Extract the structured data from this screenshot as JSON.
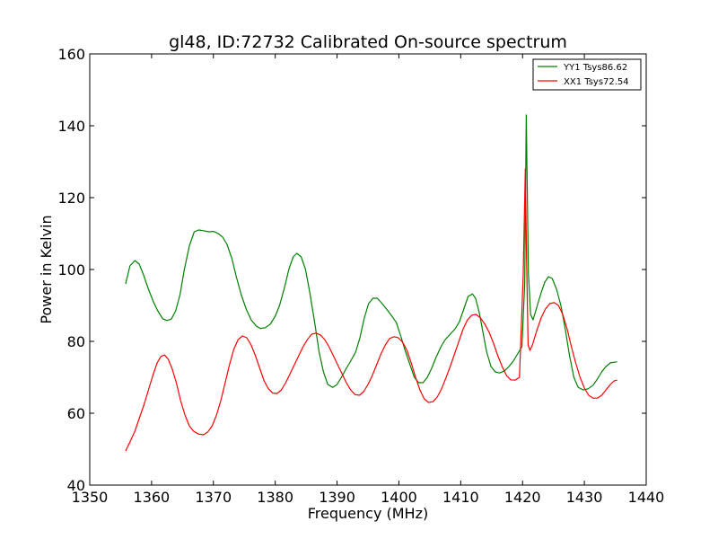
{
  "chart_data": {
    "type": "line",
    "title": "gl48, ID:72732 Calibrated On-source spectrum",
    "xlabel": "Frequency (MHz)",
    "ylabel": "Power in Kelvin",
    "xlim": [
      1350,
      1440
    ],
    "ylim": [
      40,
      160
    ],
    "xticks": [
      "1350",
      "1360",
      "1370",
      "1380",
      "1390",
      "1400",
      "1410",
      "1420",
      "1430",
      "1440"
    ],
    "yticks": [
      "40",
      "60",
      "80",
      "100",
      "120",
      "140",
      "160"
    ],
    "grid": false,
    "legend_position": "top-right",
    "series": [
      {
        "name": "YY1 Tsys86.62",
        "color": "#008000",
        "x": [
          1355.8,
          1356.5,
          1357.3,
          1358.0,
          1358.7,
          1359.5,
          1360.3,
          1361.0,
          1361.8,
          1362.5,
          1363.2,
          1363.9,
          1364.6,
          1365.3,
          1366.1,
          1366.9,
          1367.6,
          1368.4,
          1369.2,
          1370.0,
          1370.8,
          1371.5,
          1372.2,
          1373.0,
          1373.7,
          1374.5,
          1375.3,
          1376.1,
          1376.9,
          1377.6,
          1378.4,
          1379.2,
          1380.0,
          1380.7,
          1381.5,
          1382.2,
          1382.9,
          1383.5,
          1384.2,
          1384.9,
          1385.6,
          1386.4,
          1387.1,
          1387.8,
          1388.5,
          1389.3,
          1390.0,
          1390.7,
          1391.5,
          1392.2,
          1393.0,
          1393.7,
          1394.4,
          1395.1,
          1395.8,
          1396.5,
          1397.3,
          1398.0,
          1398.8,
          1399.6,
          1400.3,
          1401.0,
          1401.8,
          1402.5,
          1403.2,
          1403.9,
          1404.6,
          1405.3,
          1406.0,
          1406.8,
          1407.5,
          1408.3,
          1409.1,
          1409.8,
          1410.5,
          1411.2,
          1411.9,
          1412.4,
          1413.0,
          1413.6,
          1414.2,
          1414.9,
          1415.6,
          1416.3,
          1417.1,
          1417.8,
          1418.5,
          1419.2,
          1419.9,
          1420.35,
          1420.6,
          1420.95,
          1421.3,
          1421.7,
          1422.3,
          1423.0,
          1423.6,
          1424.2,
          1424.8,
          1425.5,
          1426.2,
          1426.9,
          1427.6,
          1428.3,
          1429.0,
          1429.8,
          1430.6,
          1431.4,
          1432.1,
          1432.8,
          1433.5,
          1434.2,
          1434.8,
          1435.3
        ],
        "y": [
          96.0,
          101.0,
          102.5,
          101.5,
          98.5,
          94.5,
          91.0,
          88.5,
          86.3,
          85.8,
          86.2,
          88.5,
          93.0,
          100.0,
          106.5,
          110.5,
          111.0,
          110.8,
          110.5,
          110.6,
          110.0,
          109.0,
          107.0,
          103.0,
          98.0,
          93.0,
          89.0,
          86.0,
          84.3,
          83.6,
          83.8,
          84.8,
          87.0,
          90.0,
          95.0,
          100.0,
          103.5,
          104.5,
          103.5,
          100.0,
          93.5,
          85.0,
          77.0,
          71.5,
          68.0,
          67.2,
          68.0,
          70.0,
          72.5,
          74.5,
          77.0,
          81.0,
          86.5,
          90.5,
          92.0,
          92.0,
          90.5,
          89.0,
          87.2,
          85.2,
          81.5,
          77.5,
          73.5,
          70.0,
          68.5,
          68.5,
          70.0,
          72.5,
          75.5,
          78.5,
          80.5,
          82.0,
          83.5,
          85.5,
          89.0,
          92.5,
          93.2,
          92.0,
          88.0,
          82.5,
          77.0,
          73.0,
          71.5,
          71.2,
          71.8,
          73.0,
          74.5,
          76.5,
          78.5,
          96.0,
          143.0,
          99.0,
          87.5,
          86.0,
          89.5,
          93.5,
          96.5,
          98.0,
          97.5,
          94.5,
          90.0,
          83.5,
          76.0,
          70.0,
          67.2,
          66.5,
          66.8,
          67.8,
          69.5,
          71.5,
          73.0,
          74.0,
          74.2,
          74.3
        ]
      },
      {
        "name": "XX1 Tsys72.54",
        "color": "#ff0000",
        "x": [
          1355.8,
          1356.5,
          1357.3,
          1358.0,
          1358.8,
          1359.5,
          1360.2,
          1360.9,
          1361.5,
          1362.1,
          1362.7,
          1363.3,
          1364.0,
          1364.7,
          1365.4,
          1366.1,
          1366.8,
          1367.6,
          1368.4,
          1369.1,
          1369.8,
          1370.5,
          1371.2,
          1371.9,
          1372.6,
          1373.3,
          1374.0,
          1374.7,
          1375.4,
          1376.1,
          1376.8,
          1377.5,
          1378.2,
          1378.9,
          1379.6,
          1380.3,
          1381.0,
          1381.7,
          1382.4,
          1383.1,
          1383.8,
          1384.5,
          1385.2,
          1385.9,
          1386.6,
          1387.3,
          1388.0,
          1388.7,
          1389.4,
          1390.1,
          1390.8,
          1391.5,
          1392.2,
          1392.9,
          1393.6,
          1394.3,
          1395.0,
          1395.7,
          1396.4,
          1397.1,
          1397.8,
          1398.5,
          1399.2,
          1399.9,
          1400.6,
          1401.3,
          1402.0,
          1402.7,
          1403.4,
          1404.1,
          1404.8,
          1405.5,
          1406.2,
          1406.9,
          1407.6,
          1408.3,
          1409.0,
          1409.7,
          1410.4,
          1411.1,
          1411.8,
          1412.5,
          1413.2,
          1413.9,
          1414.6,
          1415.3,
          1416.0,
          1416.7,
          1417.4,
          1418.1,
          1418.8,
          1419.5,
          1420.1,
          1420.45,
          1420.65,
          1420.9,
          1421.2,
          1421.6,
          1422.3,
          1423.0,
          1423.7,
          1424.4,
          1425.1,
          1425.8,
          1426.5,
          1427.2,
          1427.9,
          1428.6,
          1429.3,
          1430.0,
          1430.7,
          1431.4,
          1432.1,
          1432.8,
          1433.5,
          1434.2,
          1434.8,
          1435.3
        ],
        "y": [
          49.5,
          52.0,
          55.0,
          58.5,
          62.5,
          66.5,
          70.5,
          74.0,
          75.8,
          76.2,
          75.0,
          72.5,
          68.5,
          63.5,
          59.5,
          56.5,
          55.0,
          54.2,
          54.0,
          54.8,
          56.5,
          59.5,
          63.5,
          68.5,
          73.5,
          77.8,
          80.5,
          81.5,
          81.0,
          79.0,
          76.0,
          72.5,
          69.0,
          66.8,
          65.6,
          65.5,
          66.5,
          68.5,
          71.0,
          73.5,
          76.0,
          78.5,
          80.5,
          82.0,
          82.3,
          81.8,
          80.5,
          78.5,
          76.0,
          73.5,
          71.0,
          68.5,
          66.5,
          65.2,
          65.0,
          66.0,
          68.0,
          70.5,
          73.5,
          76.5,
          79.0,
          80.8,
          81.3,
          81.0,
          79.8,
          77.5,
          74.0,
          70.0,
          66.5,
          64.0,
          63.0,
          63.2,
          64.5,
          66.8,
          69.8,
          73.0,
          76.5,
          80.0,
          83.5,
          86.0,
          87.3,
          87.5,
          86.5,
          84.8,
          82.5,
          79.5,
          76.0,
          73.0,
          70.5,
          69.3,
          69.2,
          70.0,
          98.0,
          128.0,
          103.0,
          79.0,
          77.5,
          79.0,
          83.0,
          86.5,
          89.0,
          90.5,
          90.8,
          90.0,
          87.5,
          83.5,
          78.5,
          74.0,
          70.0,
          67.0,
          65.0,
          64.2,
          64.2,
          65.0,
          66.5,
          68.0,
          69.0,
          69.2
        ]
      }
    ]
  }
}
